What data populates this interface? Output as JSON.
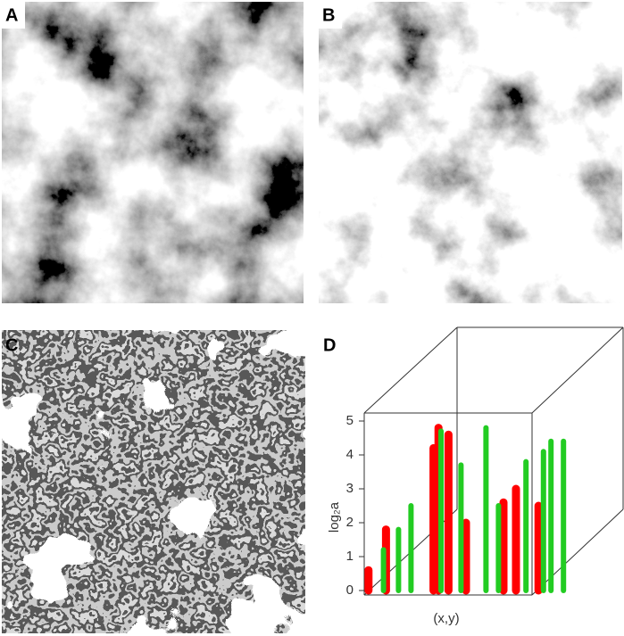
{
  "panels": [
    {
      "label": "A"
    },
    {
      "label": "B"
    },
    {
      "label": "C"
    },
    {
      "label": "D"
    }
  ],
  "chart_data": {
    "type": "column3d",
    "ylabel": "log₂a",
    "xlabel": "(x,y)",
    "ylim": [
      0,
      5
    ],
    "yticks": [
      0,
      1,
      2,
      3,
      4,
      5
    ],
    "xlim": [
      0,
      1
    ],
    "series": [
      {
        "color": "#ff0000",
        "x": [
          0.01,
          0.08,
          0.27,
          0.29,
          0.33,
          0.4,
          0.55,
          0.6,
          0.69
        ],
        "values": [
          0.6,
          1.8,
          4.2,
          4.8,
          4.6,
          2.0,
          2.6,
          3.0,
          2.5
        ]
      },
      {
        "color": "#22cc22",
        "x": [
          0.07,
          0.13,
          0.18,
          0.3,
          0.38,
          0.48,
          0.53,
          0.64,
          0.71,
          0.74,
          0.79
        ],
        "values": [
          1.2,
          1.8,
          2.5,
          4.7,
          3.7,
          4.8,
          2.5,
          3.8,
          4.1,
          4.4,
          4.4
        ]
      }
    ]
  }
}
